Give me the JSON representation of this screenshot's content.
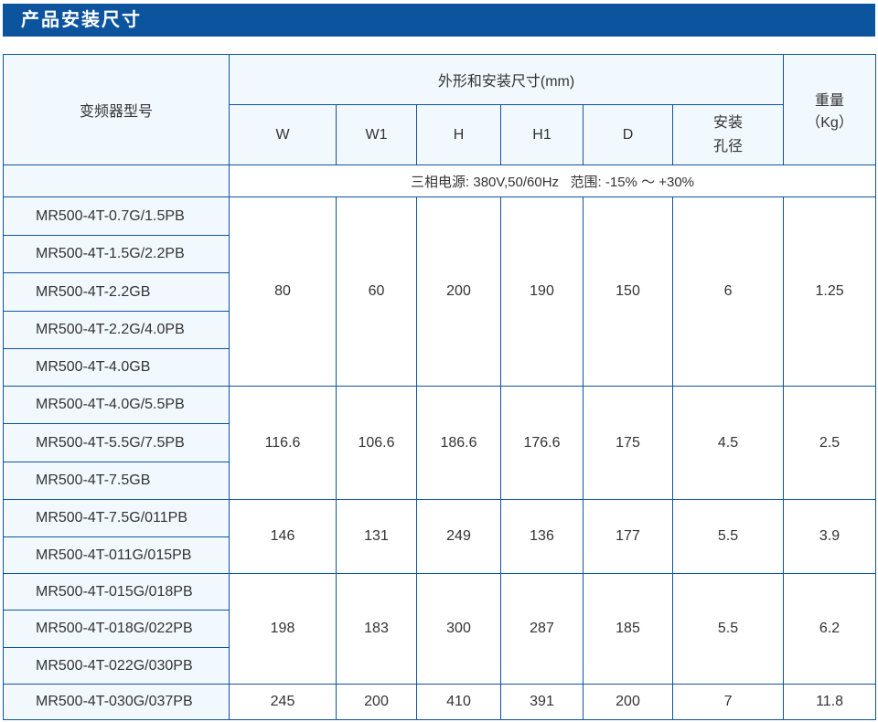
{
  "title": "产品安装尺寸",
  "header": {
    "model": "变频器型号",
    "dims_group": "外形和安装尺寸(mm)",
    "cols": [
      "W",
      "W1",
      "H",
      "H1",
      "D"
    ],
    "hole_line1": "安装",
    "hole_line2": "孔径",
    "weight_line1": "重量",
    "weight_line2": "（Kg）"
  },
  "power_note": "三相电源: 380V,50/60Hz   范围: -15% ～ +30%",
  "groups": [
    {
      "models": [
        "MR500-4T-0.7G/1.5PB",
        "MR500-4T-1.5G/2.2PB",
        "MR500-4T-2.2GB",
        "MR500-4T-2.2G/4.0PB",
        "MR500-4T-4.0GB"
      ],
      "values": [
        "80",
        "60",
        "200",
        "190",
        "150",
        "6",
        "1.25"
      ]
    },
    {
      "models": [
        "MR500-4T-4.0G/5.5PB",
        "MR500-4T-5.5G/7.5PB",
        "MR500-4T-7.5GB"
      ],
      "values": [
        "116.6",
        "106.6",
        "186.6",
        "176.6",
        "175",
        "4.5",
        "2.5"
      ]
    },
    {
      "models": [
        "MR500-4T-7.5G/011PB",
        "MR500-4T-011G/015PB"
      ],
      "values": [
        "146",
        "131",
        "249",
        "136",
        "177",
        "5.5",
        "3.9"
      ]
    },
    {
      "models": [
        "MR500-4T-015G/018PB",
        "MR500-4T-018G/022PB",
        "MR500-4T-022G/030PB"
      ],
      "values": [
        "198",
        "183",
        "300",
        "287",
        "185",
        "5.5",
        "6.2"
      ]
    },
    {
      "models": [
        "MR500-4T-030G/037PB"
      ],
      "values": [
        "245",
        "200",
        "410",
        "391",
        "200",
        "7",
        "11.8"
      ]
    }
  ]
}
